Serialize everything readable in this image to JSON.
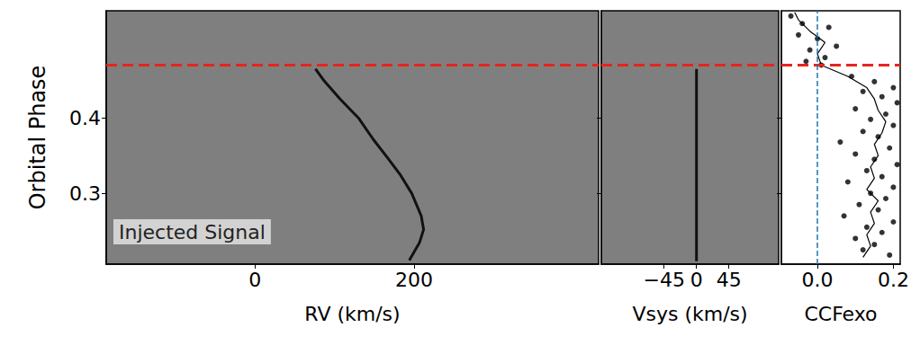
{
  "chart_data": [
    {
      "type": "line",
      "xlabel": "RV (km/s)",
      "ylabel": "Orbital Phase",
      "annotation": "Injected Signal",
      "xlim": [
        -187,
        432
      ],
      "xticks": [
        0,
        200
      ],
      "ylim": [
        0.206,
        0.542
      ],
      "yticks": [
        0.3,
        0.4
      ],
      "tick_labels": true,
      "series": [
        {
          "color": "#111111",
          "line_style": "solid",
          "x": [
            194,
            207,
            212,
            209,
            197,
            183,
            166,
            149,
            130,
            107,
            87,
            76
          ],
          "y": [
            0.211,
            0.235,
            0.252,
            0.27,
            0.3,
            0.324,
            0.348,
            0.371,
            0.4,
            0.425,
            0.449,
            0.465
          ]
        }
      ],
      "hlines": [
        {
          "y": 0.465,
          "color": "#e8231e",
          "line_style": "dashed"
        }
      ]
    },
    {
      "type": "line",
      "xlabel": "Vsys (km/s)",
      "xlim": [
        -132,
        114
      ],
      "xticks": [
        {
          "value": -45,
          "label": "−45"
        },
        0,
        45
      ],
      "ylim": [
        0.206,
        0.542
      ],
      "yticks": [
        0.3,
        0.4
      ],
      "tick_labels": "x",
      "series": [
        {
          "color": "#111111",
          "line_style": "solid",
          "x": [
            0,
            0
          ],
          "y": [
            0.21,
            0.465
          ]
        }
      ],
      "hlines": [
        {
          "y": 0.465,
          "color": "#e8231e",
          "line_style": "dashed"
        }
      ]
    },
    {
      "type": "scatter",
      "xlabel": "CCFexo",
      "xlim": [
        -0.095,
        0.218
      ],
      "xticks": [
        {
          "value": 0,
          "label": "0.0"
        },
        {
          "value": 0.2,
          "label": "0.2"
        }
      ],
      "ylim": [
        0.206,
        0.542
      ],
      "yticks": [
        0.3,
        0.4
      ],
      "tick_labels": "x",
      "series": [
        {
          "type": "scatter",
          "marker": "circle",
          "color": "#000000",
          "x": [
            -0.07,
            -0.04,
            0.03,
            -0.05,
            0.0,
            0.05,
            -0.02,
            0.02,
            0.01,
            -0.03,
            0.09,
            0.15,
            0.2,
            0.12,
            0.17,
            0.21,
            0.1,
            0.18,
            0.14,
            0.2,
            0.12,
            0.16,
            0.06,
            0.19,
            0.1,
            0.15,
            0.21,
            0.13,
            0.17,
            0.08,
            0.2,
            0.14,
            0.18,
            0.11,
            0.16,
            0.07,
            0.2,
            0.13,
            0.17,
            0.1,
            0.15,
            0.12,
            0.19
          ],
          "y": [
            0.535,
            0.525,
            0.52,
            0.51,
            0.505,
            0.495,
            0.49,
            0.48,
            0.47,
            0.475,
            0.455,
            0.448,
            0.44,
            0.435,
            0.428,
            0.42,
            0.412,
            0.405,
            0.398,
            0.39,
            0.382,
            0.375,
            0.368,
            0.36,
            0.352,
            0.345,
            0.338,
            0.33,
            0.322,
            0.315,
            0.308,
            0.3,
            0.293,
            0.285,
            0.278,
            0.27,
            0.262,
            0.255,
            0.248,
            0.24,
            0.232,
            0.225,
            0.218
          ]
        },
        {
          "type": "line",
          "line_style": "solid",
          "color": "#000000",
          "x": [
            0.12,
            0.14,
            0.13,
            0.15,
            0.14,
            0.16,
            0.13,
            0.15,
            0.14,
            0.16,
            0.15,
            0.17,
            0.18,
            0.16,
            0.15,
            0.13,
            0.08,
            0.01,
            0.0,
            0.02,
            -0.02,
            -0.05,
            -0.06
          ],
          "y": [
            0.215,
            0.23,
            0.245,
            0.26,
            0.275,
            0.29,
            0.305,
            0.32,
            0.335,
            0.35,
            0.365,
            0.38,
            0.395,
            0.41,
            0.425,
            0.44,
            0.455,
            0.47,
            0.485,
            0.5,
            0.515,
            0.53,
            0.54
          ]
        }
      ],
      "vlines": [
        {
          "x": 0,
          "color": "#1f77b4",
          "line_style": "dashed"
        }
      ],
      "hlines": [
        {
          "y": 0.465,
          "color": "#e8231e",
          "line_style": "dashed"
        }
      ]
    }
  ]
}
